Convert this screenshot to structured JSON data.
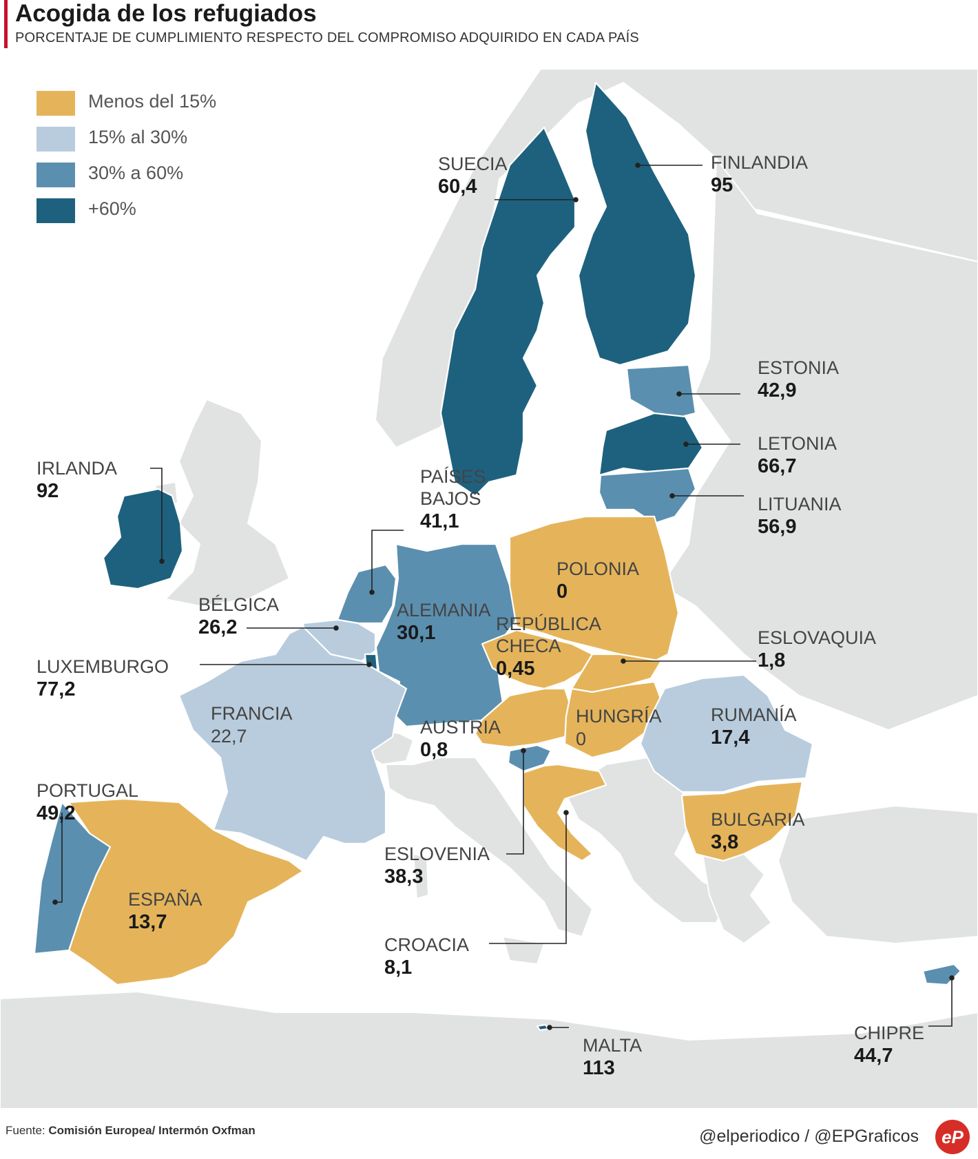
{
  "title": "Acogida de los refugiados",
  "subtitle": "PORCENTAJE DE CUMPLIMIENTO RESPECTO DEL COMPROMISO ADQUIRIDO EN CADA PAÍS",
  "colors": {
    "land": "#e1e3e2",
    "sea": "#ffffff",
    "bin_0_15": "#e5b45a",
    "bin_15_30": "#b8ccdd",
    "bin_30_60": "#5b8faf",
    "bin_60_plus": "#1e617e"
  },
  "legend": [
    {
      "label": "Menos del 15%",
      "color": "#e5b45a"
    },
    {
      "label": "15% al 30%",
      "color": "#b8ccdd"
    },
    {
      "label": "30% a 60%",
      "color": "#5b8faf"
    },
    {
      "label": "+60%",
      "color": "#1e617e"
    }
  ],
  "countries": [
    {
      "name": "SUECIA",
      "value": "60,4"
    },
    {
      "name": "FINLANDIA",
      "value": "95"
    },
    {
      "name": "ESTONIA",
      "value": "42,9"
    },
    {
      "name": "LETONIA",
      "value": "66,7"
    },
    {
      "name": "LITUANIA",
      "value": "56,9"
    },
    {
      "name": "IRLANDA",
      "value": "92"
    },
    {
      "name": "PAÍSES",
      "name2": "BAJOS",
      "value": "41,1"
    },
    {
      "name": "POLONIA",
      "value": "0"
    },
    {
      "name": "BÉLGICA",
      "value": "26,2"
    },
    {
      "name": "ALEMANIA",
      "value": "30,1"
    },
    {
      "name": "REPÚBLICA",
      "name2": "CHECA",
      "value": "0,45"
    },
    {
      "name": "ESLOVAQUIA",
      "value": "1,8"
    },
    {
      "name": "LUXEMBURGO",
      "value": "77,2"
    },
    {
      "name": "FRANCIA",
      "value": "22,7"
    },
    {
      "name": "HUNGRÍA",
      "value": "0"
    },
    {
      "name": "RUMANÍA",
      "value": "17,4"
    },
    {
      "name": "AUSTRIA",
      "value": "0,8"
    },
    {
      "name": "PORTUGAL",
      "value": "49,2"
    },
    {
      "name": "BULGARIA",
      "value": "3,8"
    },
    {
      "name": "ESLOVENIA",
      "value": "38,3"
    },
    {
      "name": "ESPAÑA",
      "value": "13,7"
    },
    {
      "name": "CROACIA",
      "value": "8,1"
    },
    {
      "name": "CHIPRE",
      "value": "44,7"
    },
    {
      "name": "MALTA",
      "value": "113"
    }
  ],
  "footer": {
    "source_prefix": "Fuente:",
    "source": "Comisión Europea/ Intermón Oxfman",
    "credit": "@elperiodico / @EPGraficos",
    "logo": "eP"
  }
}
